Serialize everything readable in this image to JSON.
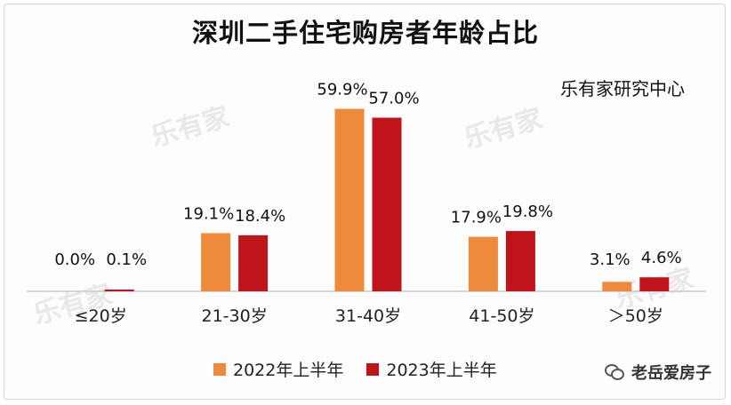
{
  "title": "深圳二手住宅购房者年龄占比",
  "source": "乐有家研究中心",
  "watermark_text": "乐有家",
  "brand": {
    "text": "老岳爱房子",
    "icon": "wechat-icon"
  },
  "colors": {
    "series_2022": "#ee8a3c",
    "series_2023": "#c0141c"
  },
  "chart_data": {
    "type": "bar",
    "categories": [
      "≤20岁",
      "21-30岁",
      "31-40岁",
      "41-50岁",
      "＞50岁"
    ],
    "series": [
      {
        "name": "2022年上半年",
        "values": [
          0.0,
          19.1,
          59.9,
          17.9,
          3.1
        ],
        "labels": [
          "0.0%",
          "19.1%",
          "59.9%",
          "17.9%",
          "3.1%"
        ]
      },
      {
        "name": "2023年上半年",
        "values": [
          0.1,
          18.4,
          57.0,
          19.8,
          4.6
        ],
        "labels": [
          "0.1%",
          "18.4%",
          "57.0%",
          "19.8%",
          "4.6%"
        ]
      }
    ],
    "ylim": [
      0,
      60
    ],
    "legend": "bottom",
    "grid": false
  }
}
